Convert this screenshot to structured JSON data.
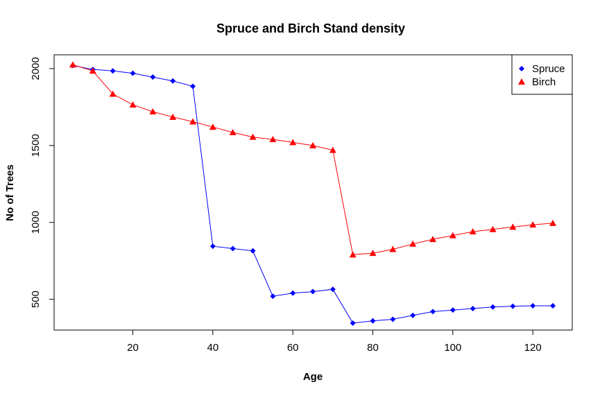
{
  "chart_data": {
    "type": "line",
    "title": "Spruce and Birch Stand density",
    "xlabel": "Age",
    "ylabel": "No of Trees",
    "xlim": [
      0,
      130
    ],
    "ylim": [
      300,
      2090
    ],
    "x_ticks": [
      "20",
      "40",
      "60",
      "80",
      "100",
      "120"
    ],
    "y_ticks": [
      "500",
      "1000",
      "1500",
      "2000"
    ],
    "grid": false,
    "legend_position": "top-right",
    "x": [
      5,
      10,
      15,
      20,
      25,
      30,
      35,
      40,
      45,
      50,
      55,
      60,
      65,
      70,
      75,
      80,
      85,
      90,
      95,
      100,
      105,
      110,
      115,
      120,
      125
    ],
    "series": [
      {
        "name": "Spruce",
        "color": "#0000ff",
        "marker": "diamond",
        "values": [
          2020,
          1995,
          1985,
          1970,
          1945,
          1920,
          1885,
          845,
          830,
          815,
          520,
          540,
          550,
          565,
          345,
          360,
          370,
          395,
          420,
          430,
          440,
          450,
          455,
          458,
          458
        ]
      },
      {
        "name": "Birch",
        "color": "#ff0000",
        "marker": "triangle",
        "values": [
          2025,
          1985,
          1835,
          1765,
          1720,
          1685,
          1655,
          1620,
          1585,
          1555,
          1540,
          1520,
          1500,
          1470,
          790,
          800,
          825,
          860,
          890,
          915,
          940,
          955,
          970,
          985,
          995
        ]
      }
    ]
  }
}
